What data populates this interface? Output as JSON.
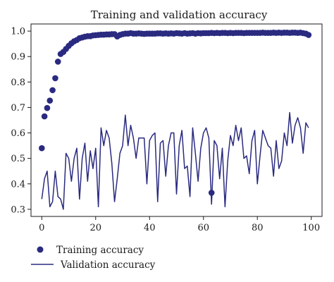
{
  "chart_data": {
    "type": "line",
    "title": "Training and validation accuracy",
    "xlabel": "",
    "ylabel": "",
    "xlim": [
      -4,
      104
    ],
    "ylim": [
      0.272,
      1.028
    ],
    "xticks": [
      0,
      20,
      40,
      60,
      80,
      100
    ],
    "yticks": [
      0.3,
      0.4,
      0.5,
      0.6,
      0.7,
      0.8,
      0.9,
      1.0
    ],
    "xtick_labels": [
      "0",
      "20",
      "40",
      "60",
      "80",
      "100"
    ],
    "ytick_labels": [
      "0.3",
      "0.4",
      "0.5",
      "0.6",
      "0.7",
      "0.8",
      "0.9",
      "1.0"
    ],
    "grid": false,
    "legend_position": "bottom-left",
    "series_color": "#2a2a80",
    "series": [
      {
        "name": "Training accuracy",
        "style": "markers",
        "x": [
          0,
          1,
          2,
          3,
          4,
          5,
          6,
          7,
          8,
          9,
          10,
          11,
          12,
          13,
          14,
          15,
          16,
          17,
          18,
          19,
          20,
          21,
          22,
          23,
          24,
          25,
          26,
          27,
          28,
          29,
          30,
          31,
          32,
          33,
          34,
          35,
          36,
          37,
          38,
          39,
          40,
          41,
          42,
          43,
          44,
          45,
          46,
          47,
          48,
          49,
          50,
          51,
          52,
          53,
          54,
          55,
          56,
          57,
          58,
          59,
          60,
          61,
          62,
          63,
          64,
          65,
          66,
          67,
          68,
          69,
          70,
          71,
          72,
          73,
          74,
          75,
          76,
          77,
          78,
          79,
          80,
          81,
          82,
          83,
          84,
          85,
          86,
          87,
          88,
          89,
          90,
          91,
          92,
          93,
          94,
          95,
          96,
          97,
          98,
          99
        ],
        "values": [
          0.54,
          0.665,
          0.698,
          0.727,
          0.768,
          0.815,
          0.88,
          0.91,
          0.918,
          0.93,
          0.942,
          0.952,
          0.96,
          0.965,
          0.972,
          0.975,
          0.978,
          0.98,
          0.98,
          0.983,
          0.984,
          0.985,
          0.986,
          0.986,
          0.987,
          0.987,
          0.988,
          0.988,
          0.979,
          0.985,
          0.988,
          0.99,
          0.99,
          0.992,
          0.99,
          0.99,
          0.991,
          0.99,
          0.989,
          0.99,
          0.99,
          0.99,
          0.99,
          0.991,
          0.991,
          0.99,
          0.991,
          0.99,
          0.991,
          0.99,
          0.992,
          0.991,
          0.99,
          0.992,
          0.99,
          0.991,
          0.992,
          0.99,
          0.992,
          0.991,
          0.992,
          0.992,
          0.992,
          0.993,
          0.992,
          0.993,
          0.992,
          0.993,
          0.993,
          0.992,
          0.993,
          0.992,
          0.993,
          0.993,
          0.993,
          0.992,
          0.993,
          0.993,
          0.993,
          0.993,
          0.993,
          0.993,
          0.994,
          0.993,
          0.993,
          0.993,
          0.994,
          0.993,
          0.994,
          0.993,
          0.994,
          0.994,
          0.993,
          0.994,
          0.994,
          0.993,
          0.994,
          0.992,
          0.99,
          0.985
        ]
      },
      {
        "name": "Validation accuracy",
        "style": "line",
        "x": [
          0,
          1,
          2,
          3,
          4,
          5,
          6,
          7,
          8,
          9,
          10,
          11,
          12,
          13,
          14,
          15,
          16,
          17,
          18,
          19,
          20,
          21,
          22,
          23,
          24,
          25,
          26,
          27,
          28,
          29,
          30,
          31,
          32,
          33,
          34,
          35,
          36,
          37,
          38,
          39,
          40,
          41,
          42,
          43,
          44,
          45,
          46,
          47,
          48,
          49,
          50,
          51,
          52,
          53,
          54,
          55,
          56,
          57,
          58,
          59,
          60,
          61,
          62,
          63,
          64,
          65,
          66,
          67,
          68,
          69,
          70,
          71,
          72,
          73,
          74,
          75,
          76,
          77,
          78,
          79,
          80,
          81,
          82,
          83,
          84,
          85,
          86,
          87,
          88,
          89,
          90,
          91,
          92,
          93,
          94,
          95,
          96,
          97,
          98,
          99
        ],
        "values": [
          0.34,
          0.42,
          0.45,
          0.31,
          0.33,
          0.45,
          0.35,
          0.34,
          0.3,
          0.52,
          0.5,
          0.41,
          0.5,
          0.54,
          0.34,
          0.5,
          0.56,
          0.41,
          0.53,
          0.46,
          0.54,
          0.31,
          0.62,
          0.55,
          0.61,
          0.58,
          0.48,
          0.33,
          0.42,
          0.52,
          0.55,
          0.67,
          0.55,
          0.63,
          0.58,
          0.5,
          0.58,
          0.58,
          0.58,
          0.4,
          0.57,
          0.59,
          0.6,
          0.33,
          0.56,
          0.57,
          0.43,
          0.55,
          0.6,
          0.6,
          0.36,
          0.55,
          0.61,
          0.46,
          0.47,
          0.35,
          0.62,
          0.52,
          0.41,
          0.54,
          0.6,
          0.62,
          0.58,
          0.32,
          0.57,
          0.55,
          0.42,
          0.54,
          0.31,
          0.49,
          0.59,
          0.55,
          0.63,
          0.57,
          0.62,
          0.5,
          0.51,
          0.44,
          0.57,
          0.61,
          0.4,
          0.51,
          0.61,
          0.58,
          0.55,
          0.54,
          0.43,
          0.57,
          0.46,
          0.49,
          0.6,
          0.55,
          0.68,
          0.56,
          0.63,
          0.66,
          0.62,
          0.52,
          0.64,
          0.62
        ]
      }
    ],
    "annotation_markers": [
      {
        "x": 63,
        "y": 0.365
      }
    ]
  }
}
